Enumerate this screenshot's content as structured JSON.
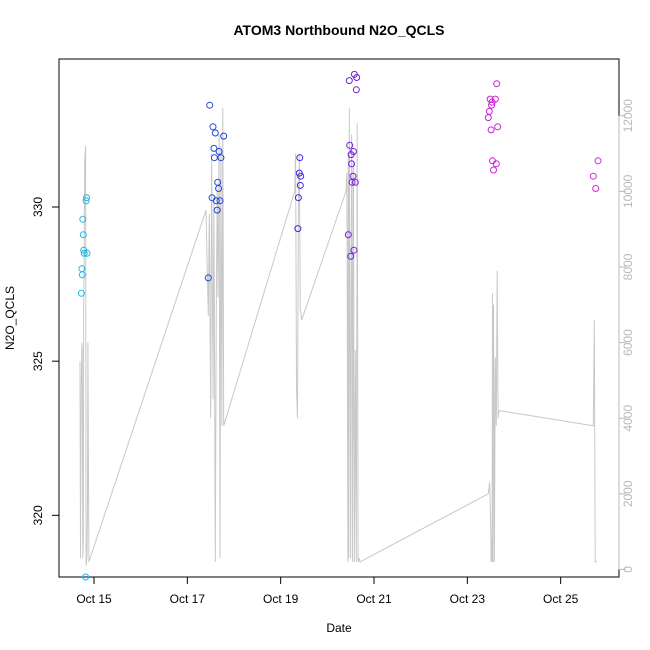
{
  "chart_data": {
    "type": "scatter",
    "title": "ATOM3 Northbound N2O_QCLS",
    "xlabel": "Date",
    "ylabel": "N2O_QCLS",
    "x_unit": "days in October",
    "xlim": [
      14.25,
      26.25
    ],
    "ylim": [
      318.0,
      334.8
    ],
    "y2lim": [
      -200,
      13500
    ],
    "x_ticks": [
      15,
      17,
      19,
      21,
      23,
      25
    ],
    "x_tick_labels": [
      "Oct 15",
      "Oct 17",
      "Oct 19",
      "Oct 21",
      "Oct 23",
      "Oct 25"
    ],
    "y_ticks": [
      320,
      325,
      330
    ],
    "y_tick_labels": [
      "320",
      "325",
      "330"
    ],
    "y2_ticks": [
      0,
      2000,
      4000,
      6000,
      8000,
      10000,
      12000
    ],
    "y2_tick_labels": [
      "0",
      "2000",
      "4000",
      "6000",
      "8000",
      "10000",
      "12000"
    ],
    "grid": false,
    "colors": {
      "altitude_line": "#c8c8c8",
      "right_axis": "#b9b9b9",
      "point_ramp": [
        "#1fb8e6",
        "#1f78e0",
        "#2020e0",
        "#6a20d8",
        "#a81fd8",
        "#d81fd8",
        "#e020e0"
      ]
    },
    "series": [
      {
        "kind": "points",
        "colored_by": "x",
        "x": [
          14.73,
          14.74,
          14.75,
          14.76,
          14.77,
          14.78,
          14.79,
          14.82,
          14.83,
          14.84,
          14.85,
          17.45,
          17.48,
          17.53,
          17.55,
          17.57,
          17.58,
          17.6,
          17.62,
          17.64,
          17.65,
          17.67,
          17.68,
          17.7,
          17.72,
          17.78,
          19.37,
          19.38,
          19.4,
          19.41,
          19.42,
          19.43,
          20.45,
          20.47,
          20.48,
          20.5,
          20.51,
          20.52,
          20.53,
          20.55,
          20.56,
          20.57,
          20.58,
          20.6,
          20.62,
          20.63,
          23.45,
          23.47,
          23.49,
          23.51,
          23.52,
          23.53,
          23.54,
          23.56,
          23.6,
          23.62,
          23.63,
          23.65,
          25.7,
          25.75,
          25.8
        ],
        "y": [
          327.2,
          328.0,
          327.8,
          329.6,
          329.1,
          328.6,
          328.5,
          318.0,
          330.2,
          330.3,
          328.5,
          327.7,
          333.3,
          330.3,
          332.6,
          331.9,
          331.6,
          332.4,
          330.2,
          329.9,
          330.8,
          330.6,
          331.8,
          330.2,
          331.6,
          332.3,
          329.3,
          330.3,
          331.1,
          331.6,
          330.7,
          331.0,
          329.1,
          334.1,
          332.0,
          328.4,
          331.7,
          331.4,
          330.8,
          331.0,
          331.8,
          328.6,
          334.3,
          330.8,
          333.8,
          334.2,
          332.9,
          333.1,
          333.5,
          332.5,
          333.3,
          333.4,
          331.5,
          331.2,
          333.5,
          331.4,
          334.0,
          332.6,
          331.0,
          330.6,
          331.5
        ]
      },
      {
        "kind": "altitude",
        "axis": "right",
        "x": [
          14.7,
          14.71,
          14.72,
          14.73,
          14.74,
          14.75,
          14.76,
          14.77,
          14.78,
          14.79,
          14.8,
          14.81,
          14.82,
          14.83,
          14.84,
          14.85,
          14.86,
          14.87,
          14.89,
          17.4,
          17.45,
          17.47,
          17.5,
          17.52,
          17.55,
          17.57,
          17.6,
          17.62,
          17.64,
          17.66,
          17.68,
          17.7,
          17.72,
          17.74,
          17.76,
          17.78,
          19.3,
          19.32,
          19.34,
          19.36,
          19.38,
          19.4,
          19.42,
          19.45,
          20.4,
          20.42,
          20.44,
          20.45,
          20.46,
          20.47,
          20.48,
          20.5,
          20.52,
          20.53,
          20.54,
          20.56,
          20.57,
          20.58,
          20.6,
          20.62,
          20.64,
          20.66,
          20.68,
          20.7,
          23.45,
          23.48,
          23.5,
          23.51,
          23.52,
          23.53,
          23.54,
          23.55,
          23.56,
          23.57,
          23.58,
          23.6,
          23.62,
          23.64,
          23.66,
          23.68,
          25.7,
          25.72,
          25.74,
          25.76,
          25.78
        ],
        "y": [
          5500,
          300,
          3000,
          5000,
          6000,
          5800,
          300,
          800,
          7000,
          8500,
          10800,
          11000,
          11200,
          100,
          200,
          400,
          1500,
          6000,
          200,
          9500,
          6700,
          9400,
          4000,
          11000,
          4500,
          9900,
          200,
          7000,
          10000,
          7200,
          11500,
          300,
          11200,
          3800,
          12200,
          3800,
          10000,
          11000,
          4800,
          4000,
          9500,
          11000,
          6900,
          6600,
          10000,
          10500,
          200,
          11000,
          300,
          12200,
          9000,
          300,
          11500,
          10200,
          200,
          10800,
          4800,
          200,
          5800,
          200,
          11800,
          200,
          300,
          200,
          2000,
          2300,
          1200,
          200,
          800,
          200,
          7300,
          200,
          7000,
          5000,
          200,
          5600,
          3800,
          7900,
          4000,
          4200,
          3800,
          6600,
          200,
          200,
          200
        ]
      }
    ]
  }
}
